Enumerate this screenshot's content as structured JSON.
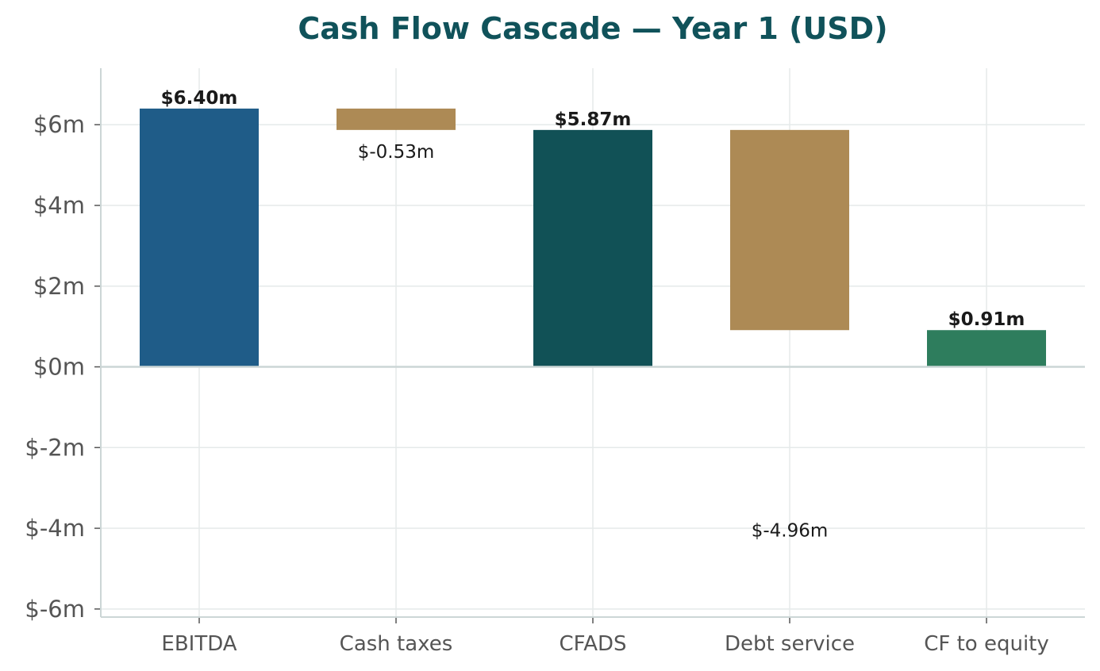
{
  "title": "Cash Flow Cascade — Year 1 (USD)",
  "colors": {
    "title": "#10525a",
    "ebitda": "#1f5c88",
    "decrease": "#ad8a55",
    "cfads": "#115156",
    "equity": "#2e7d5d",
    "grid": "#e5eaea",
    "axis": "#ccd6d6",
    "zero_line": "#ccd6d6"
  },
  "chart_data": {
    "type": "bar",
    "subtype": "waterfall",
    "title": "Cash Flow Cascade — Year 1 (USD)",
    "xlabel": "",
    "ylabel": "",
    "categories": [
      "EBITDA",
      "Cash taxes",
      "CFADS",
      "Debt service",
      "CF to equity"
    ],
    "bars": [
      {
        "category": "EBITDA",
        "kind": "total",
        "start": 0,
        "end": 6.4,
        "label": "$6.40m",
        "color_key": "ebitda"
      },
      {
        "category": "Cash taxes",
        "kind": "delta",
        "start": 6.4,
        "end": 5.87,
        "value": -0.53,
        "label": "$-0.53m",
        "color_key": "decrease"
      },
      {
        "category": "CFADS",
        "kind": "total",
        "start": 0,
        "end": 5.87,
        "label": "$5.87m",
        "color_key": "cfads"
      },
      {
        "category": "Debt service",
        "kind": "delta",
        "start": 5.87,
        "end": 0.91,
        "value": -4.96,
        "label": "$-4.96m",
        "color_key": "decrease"
      },
      {
        "category": "CF to equity",
        "kind": "total",
        "start": 0,
        "end": 0.91,
        "label": "$0.91m",
        "color_key": "equity"
      }
    ],
    "ylim": [
      -6.2,
      7.4
    ],
    "yticks": [
      6,
      4,
      2,
      0,
      -2,
      -4,
      -6
    ],
    "ytick_labels": [
      "$6m",
      "$4m",
      "$2m",
      "$0m",
      "$-2m",
      "$-4m",
      "$-6m"
    ],
    "grid": true,
    "legend": "none"
  }
}
